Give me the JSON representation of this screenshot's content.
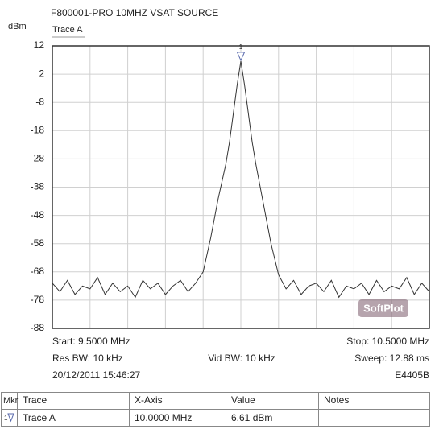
{
  "chart_data": {
    "type": "line",
    "title": "F800001-PRO 10MHZ VSAT SOURCE",
    "y_label": "dBm",
    "xlim": [
      9.5,
      10.5
    ],
    "ylim": [
      -88,
      12
    ],
    "yticks": [
      12,
      2,
      -8,
      -18,
      -28,
      -38,
      -48,
      -58,
      -68,
      -78,
      -88
    ],
    "grid": true,
    "series": [
      {
        "name": "Trace A",
        "color": "#333333",
        "x": [
          9.5,
          9.52,
          9.54,
          9.56,
          9.58,
          9.6,
          9.62,
          9.64,
          9.66,
          9.68,
          9.7,
          9.72,
          9.74,
          9.76,
          9.78,
          9.8,
          9.82,
          9.84,
          9.86,
          9.88,
          9.9,
          9.92,
          9.94,
          9.96,
          9.97,
          9.98,
          9.99,
          10.0,
          10.01,
          10.02,
          10.03,
          10.04,
          10.06,
          10.08,
          10.1,
          10.12,
          10.14,
          10.16,
          10.18,
          10.2,
          10.22,
          10.24,
          10.26,
          10.28,
          10.3,
          10.32,
          10.34,
          10.36,
          10.38,
          10.4,
          10.42,
          10.44,
          10.46,
          10.48,
          10.5
        ],
        "values": [
          -72,
          -75,
          -71,
          -76,
          -73,
          -74,
          -70,
          -76,
          -72,
          -75,
          -73,
          -77,
          -71,
          -74,
          -72,
          -76,
          -73,
          -71,
          -75,
          -72,
          -68,
          -56,
          -42,
          -30,
          -22,
          -12,
          -2,
          6.61,
          -2,
          -12,
          -22,
          -30,
          -44,
          -58,
          -69,
          -74,
          -71,
          -76,
          -73,
          -72,
          -75,
          -71,
          -77,
          -73,
          -74,
          -72,
          -76,
          -71,
          -75,
          -73,
          -74,
          -70,
          -76,
          -72,
          -75
        ]
      }
    ],
    "marker": {
      "label": "1",
      "x": 10.0,
      "y": 6.61
    },
    "watermark": "SoftPlot",
    "footer": {
      "start": "Start: 9.5000 MHz",
      "stop": "Stop: 10.5000 MHz",
      "res_bw": "Res BW: 10 kHz",
      "vid_bw": "Vid BW: 10 kHz",
      "sweep": "Sweep: 12.88 ms",
      "datetime": "20/12/2011 15:46:27",
      "instrument": "E4405B"
    }
  },
  "marker_table": {
    "header": [
      "Mkr",
      "Trace",
      "X-Axis",
      "Value",
      "Notes"
    ],
    "rows": [
      [
        "1",
        "Trace A",
        "10.0000 MHz",
        "6.61 dBm"
      ]
    ]
  }
}
